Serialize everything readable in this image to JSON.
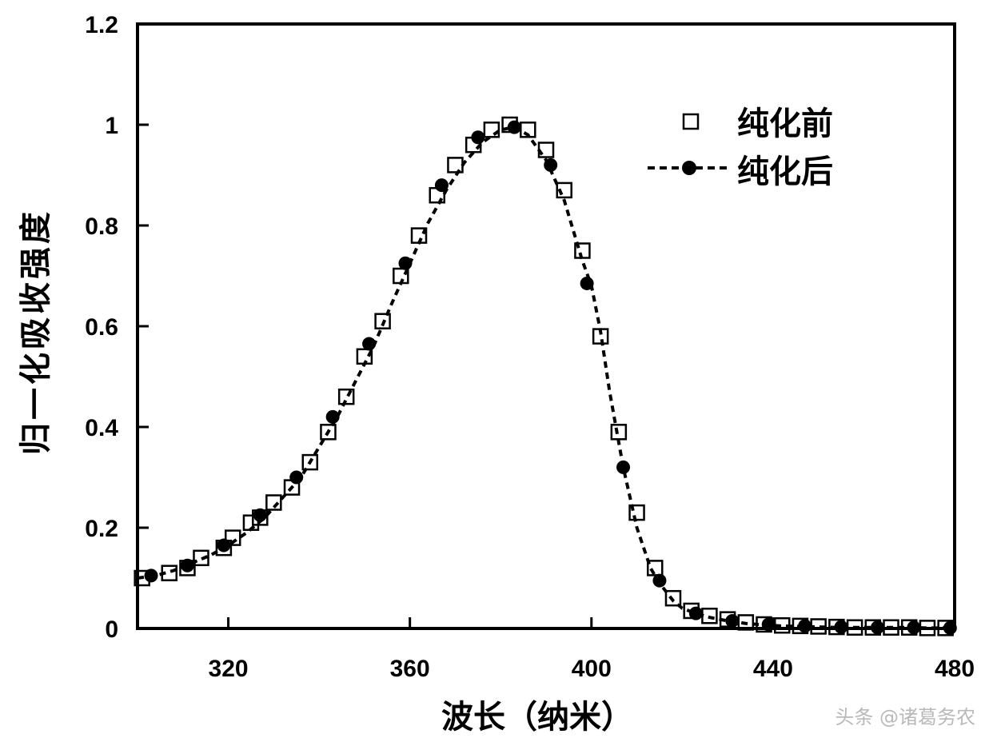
{
  "chart_data": {
    "type": "scatter",
    "title": "",
    "xlabel": "波长（纳米）",
    "ylabel": "归一化吸收强度",
    "xlim": [
      300,
      480
    ],
    "ylim": [
      0,
      1.2
    ],
    "xticks": [
      320,
      360,
      400,
      440,
      480
    ],
    "xtick_labels": [
      "320",
      "360",
      "400",
      "440",
      "480"
    ],
    "yticks": [
      0,
      0.2,
      0.4,
      0.6,
      0.8,
      1,
      1.2
    ],
    "ytick_labels": [
      "0",
      "0.2",
      "0.4",
      "0.6",
      "0.8",
      "1",
      "1.2"
    ],
    "legend_position": "top-right",
    "series": [
      {
        "name": "纯化前",
        "style": "open-square",
        "color": "#000000",
        "x": [
          301,
          307,
          311,
          314,
          319,
          321,
          325,
          327,
          330,
          334,
          338,
          342,
          346,
          350,
          354,
          358,
          362,
          366,
          370,
          374,
          378,
          382,
          386,
          390,
          394,
          398,
          402,
          406,
          410,
          414,
          418,
          422,
          426,
          430,
          434,
          438,
          442,
          446,
          450,
          454,
          458,
          462,
          466,
          470,
          474,
          478
        ],
        "y": [
          0.1,
          0.11,
          0.12,
          0.14,
          0.16,
          0.18,
          0.21,
          0.22,
          0.25,
          0.28,
          0.33,
          0.39,
          0.46,
          0.54,
          0.61,
          0.7,
          0.78,
          0.86,
          0.92,
          0.96,
          0.99,
          1.0,
          0.99,
          0.95,
          0.87,
          0.75,
          0.58,
          0.39,
          0.23,
          0.12,
          0.06,
          0.035,
          0.025,
          0.018,
          0.012,
          0.008,
          0.006,
          0.005,
          0.004,
          0.003,
          0.002,
          0.002,
          0.002,
          0.002,
          0.001,
          0.001
        ]
      },
      {
        "name": "纯化后",
        "style": "dashed-line-filled-circle",
        "color": "#000000",
        "x": [
          300,
          304,
          308,
          312,
          316,
          320,
          324,
          328,
          332,
          336,
          340,
          344,
          348,
          352,
          356,
          360,
          364,
          368,
          372,
          376,
          380,
          383,
          386,
          390,
          394,
          398,
          400,
          402,
          404,
          407,
          410,
          413,
          415,
          418,
          420,
          423,
          426,
          430,
          434,
          438,
          442,
          446,
          450,
          454,
          458,
          462,
          466,
          470,
          474,
          478
        ],
        "y": [
          0.1,
          0.105,
          0.115,
          0.13,
          0.145,
          0.165,
          0.19,
          0.22,
          0.26,
          0.3,
          0.36,
          0.42,
          0.49,
          0.56,
          0.645,
          0.725,
          0.805,
          0.87,
          0.925,
          0.965,
          0.99,
          0.995,
          0.98,
          0.93,
          0.85,
          0.73,
          0.68,
          0.59,
          0.47,
          0.32,
          0.2,
          0.12,
          0.09,
          0.055,
          0.04,
          0.03,
          0.022,
          0.015,
          0.01,
          0.007,
          0.005,
          0.004,
          0.003,
          0.002,
          0.002,
          0.002,
          0.002,
          0.002,
          0.001,
          0.001
        ]
      },
      {
        "name": "纯化后-markers",
        "style": "filled-circle",
        "x": [
          303,
          311,
          319,
          327,
          335,
          343,
          351,
          359,
          367,
          375,
          383,
          391,
          399,
          407,
          415,
          423,
          431,
          439,
          447,
          455,
          463,
          471,
          479
        ],
        "y": [
          0.105,
          0.125,
          0.165,
          0.225,
          0.3,
          0.42,
          0.565,
          0.725,
          0.88,
          0.975,
          0.995,
          0.92,
          0.685,
          0.32,
          0.095,
          0.03,
          0.015,
          0.008,
          0.005,
          0.003,
          0.002,
          0.002,
          0.001
        ]
      }
    ]
  },
  "watermark": "头条 @诸葛务农"
}
